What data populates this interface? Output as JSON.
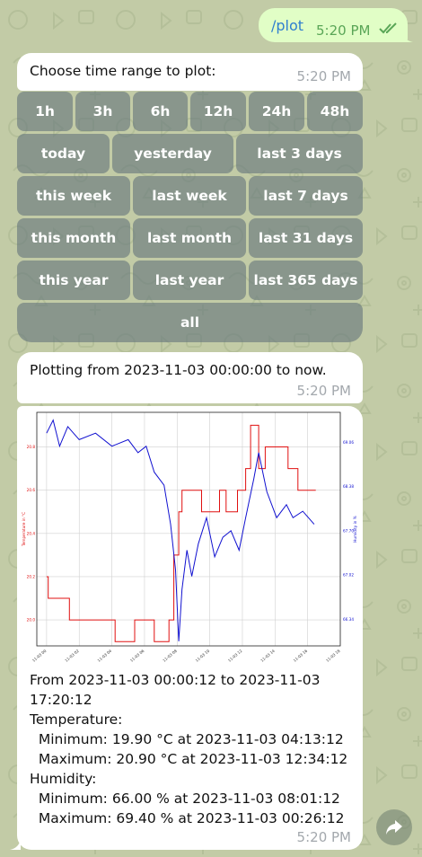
{
  "sent": {
    "text": "/plot",
    "time": "5:20 PM"
  },
  "prompt": {
    "text": "Choose time range to plot:",
    "time": "5:20 PM"
  },
  "keyboard": {
    "rows": [
      [
        "1h",
        "3h",
        "6h",
        "12h",
        "24h",
        "48h"
      ],
      [
        "today",
        "yesterday",
        "last 3 days"
      ],
      [
        "this week",
        "last week",
        "last 7 days"
      ],
      [
        "this month",
        "last month",
        "last 31 days"
      ],
      [
        "this year",
        "last year",
        "last 365 days"
      ],
      [
        "all"
      ]
    ]
  },
  "status": {
    "text": "Plotting from 2023-11-03 00:00:00 to now.",
    "time": "5:20 PM"
  },
  "summary": {
    "lines": [
      "From 2023-11-03 00:00:12 to 2023-11-03",
      "17:20:12",
      "Temperature:",
      "  Minimum: 19.90 °C at 2023-11-03 04:13:12",
      "  Maximum: 20.90 °C at 2023-11-03 12:34:12",
      "Humidity:",
      "  Minimum: 66.00 % at 2023-11-03 08:01:12",
      "  Maximum: 69.40 % at 2023-11-03 00:26:12"
    ],
    "time": "5:20 PM"
  },
  "chart_data": {
    "type": "line",
    "title": "",
    "xlabel": "",
    "ylabel": "Temperature in °C",
    "y2label": "Humidity in %",
    "x_ticks": [
      "11-03 00",
      "11-03 02",
      "11-03 04",
      "11-03 06",
      "11-03 08",
      "11-03 10",
      "11-03 12",
      "11-03 14",
      "11-03 16",
      "11-03 18"
    ],
    "x_range": [
      -0.6,
      18.0
    ],
    "y_ticks": [
      "20.0",
      "20.2",
      "20.4",
      "20.6",
      "20.8"
    ],
    "ylim": [
      19.88,
      20.96
    ],
    "y2_ticks": [
      "66.34",
      "67.02",
      "67.70",
      "68.38",
      "69.06"
    ],
    "y2lim": [
      65.93,
      69.52
    ],
    "grid": true,
    "series": [
      {
        "axis": "left",
        "color": "#e01010",
        "points": [
          [
            0,
            20.2
          ],
          [
            0.1,
            20.1
          ],
          [
            1.2,
            20.1
          ],
          [
            1.4,
            20.0
          ],
          [
            3.2,
            20.0
          ],
          [
            4.2,
            19.9
          ],
          [
            5.0,
            19.9
          ],
          [
            5.4,
            20.0
          ],
          [
            6.4,
            20.0
          ],
          [
            6.6,
            19.9
          ],
          [
            7.2,
            19.9
          ],
          [
            7.5,
            20.0
          ],
          [
            7.8,
            20.3
          ],
          [
            8.1,
            20.5
          ],
          [
            8.3,
            20.6
          ],
          [
            9.0,
            20.6
          ],
          [
            9.5,
            20.5
          ],
          [
            10.1,
            20.5
          ],
          [
            10.6,
            20.6
          ],
          [
            11.0,
            20.5
          ],
          [
            11.7,
            20.6
          ],
          [
            12.2,
            20.7
          ],
          [
            12.5,
            20.9
          ],
          [
            13.0,
            20.7
          ],
          [
            13.4,
            20.8
          ],
          [
            14.2,
            20.8
          ],
          [
            14.8,
            20.7
          ],
          [
            15.1,
            20.7
          ],
          [
            15.4,
            20.6
          ],
          [
            16.5,
            20.6
          ]
        ]
      },
      {
        "axis": "right",
        "color": "#1010d0",
        "points": [
          [
            0,
            69.2
          ],
          [
            0.4,
            69.4
          ],
          [
            0.8,
            69.0
          ],
          [
            1.3,
            69.3
          ],
          [
            2.0,
            69.1
          ],
          [
            3.0,
            69.2
          ],
          [
            4.0,
            69.0
          ],
          [
            5.0,
            69.1
          ],
          [
            5.6,
            68.9
          ],
          [
            6.1,
            69.0
          ],
          [
            6.6,
            68.6
          ],
          [
            7.2,
            68.4
          ],
          [
            7.6,
            67.8
          ],
          [
            7.9,
            67.1
          ],
          [
            8.1,
            66.0
          ],
          [
            8.3,
            66.8
          ],
          [
            8.6,
            67.4
          ],
          [
            8.9,
            67.0
          ],
          [
            9.3,
            67.5
          ],
          [
            9.8,
            67.9
          ],
          [
            10.3,
            67.3
          ],
          [
            10.8,
            67.6
          ],
          [
            11.3,
            67.7
          ],
          [
            11.8,
            67.4
          ],
          [
            12.2,
            67.9
          ],
          [
            12.7,
            68.5
          ],
          [
            13.0,
            68.9
          ],
          [
            13.5,
            68.3
          ],
          [
            14.1,
            67.9
          ],
          [
            14.7,
            68.1
          ],
          [
            15.1,
            67.9
          ],
          [
            15.7,
            68.0
          ],
          [
            16.4,
            67.8
          ]
        ]
      }
    ]
  }
}
